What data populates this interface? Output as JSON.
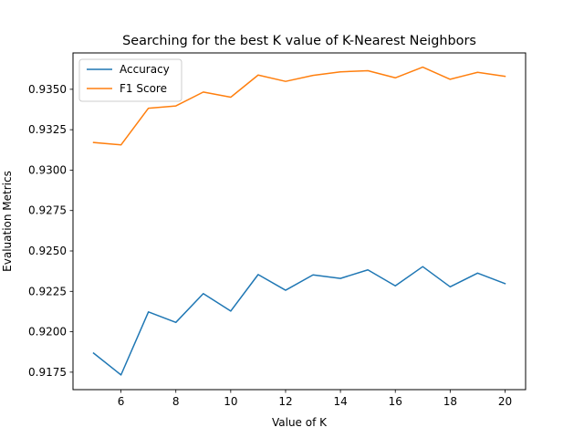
{
  "chart_data": {
    "type": "line",
    "title": "Searching for the best K value of K-Nearest Neighbors",
    "xlabel": "Value of K",
    "ylabel": "Evaluation Metrics",
    "x": [
      5,
      6,
      7,
      8,
      9,
      10,
      11,
      12,
      13,
      14,
      15,
      16,
      17,
      18,
      19,
      20
    ],
    "xlim": [
      4.25,
      20.75
    ],
    "ylim": [
      0.91642,
      0.93725
    ],
    "x_ticks": [
      6,
      8,
      10,
      12,
      14,
      16,
      18,
      20
    ],
    "y_ticks": [
      0.9175,
      0.92,
      0.9225,
      0.925,
      0.9275,
      0.93,
      0.9325,
      0.935
    ],
    "x_tick_labels": [
      "6",
      "8",
      "10",
      "12",
      "14",
      "16",
      "18",
      "20"
    ],
    "y_tick_labels": [
      "0.9175",
      "0.9200",
      "0.9225",
      "0.9250",
      "0.9275",
      "0.9300",
      "0.9325",
      "0.9350"
    ],
    "grid": false,
    "legend_position": "top-left",
    "series": [
      {
        "name": "Accuracy",
        "color": "#1f77b4",
        "values": [
          0.91868,
          0.91733,
          0.92123,
          0.92058,
          0.92236,
          0.92128,
          0.92354,
          0.92257,
          0.92352,
          0.9233,
          0.92383,
          0.92284,
          0.92403,
          0.92278,
          0.92363,
          0.92298
        ]
      },
      {
        "name": "F1 Score",
        "color": "#ff7f0e",
        "values": [
          0.93171,
          0.93156,
          0.93383,
          0.93397,
          0.93483,
          0.93451,
          0.93588,
          0.93549,
          0.93586,
          0.93608,
          0.93615,
          0.93571,
          0.93637,
          0.93562,
          0.93605,
          0.9358
        ]
      }
    ]
  }
}
